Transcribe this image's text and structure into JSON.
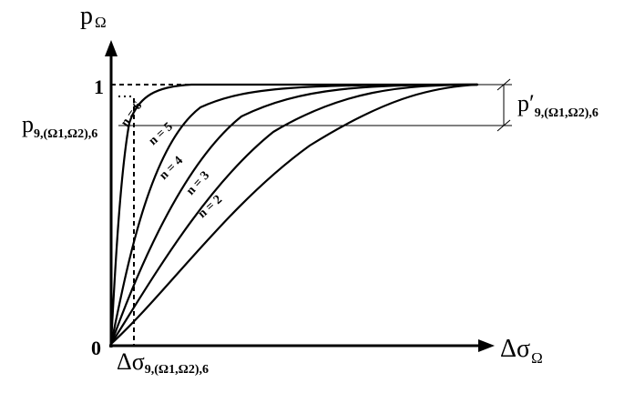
{
  "axes": {
    "y_label_main": "p",
    "y_label_sub": "Ω",
    "x_label_main": "Δσ",
    "x_label_sub": "Ω",
    "origin_label": "0",
    "y_top_label": "1"
  },
  "markers": {
    "p_level_main": "p",
    "p_level_sub": "9,(Ω1,Ω2),6",
    "p_prime_main": "p′",
    "p_prime_sub": "9,(Ω1,Ω2),6",
    "sigma_main": "Δσ",
    "sigma_sub": "9,(Ω1,Ω2),6"
  },
  "curves": [
    {
      "label": "n = 6"
    },
    {
      "label": "n = 5"
    },
    {
      "label": "n = 4"
    },
    {
      "label": "n = 3"
    },
    {
      "label": "n = 2"
    }
  ]
}
